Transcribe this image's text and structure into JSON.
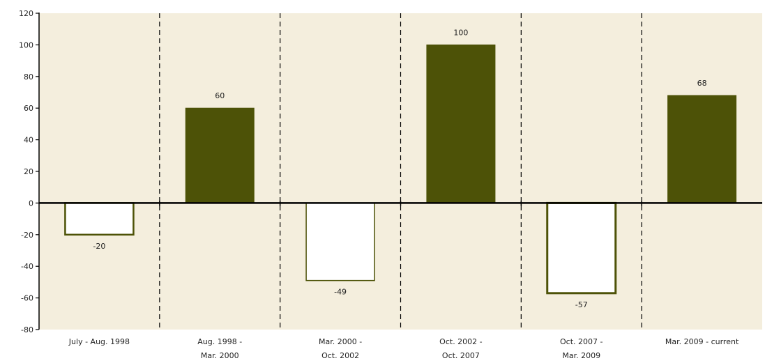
{
  "chart_data": {
    "type": "bar",
    "categories": [
      [
        "July - Aug. 1998"
      ],
      [
        "Aug. 1998 -",
        "Mar. 2000"
      ],
      [
        "Mar. 2000 -",
        "Oct. 2002"
      ],
      [
        "Oct. 2002 -",
        "Oct. 2007"
      ],
      [
        "Oct. 2007 -",
        "Mar. 2009"
      ],
      [
        "Mar. 2009 - current"
      ]
    ],
    "values": [
      -20,
      60,
      -49,
      100,
      -57,
      68
    ],
    "data_labels": [
      "-20",
      "60",
      "-49",
      "100",
      "-57",
      "68"
    ],
    "ylim": [
      -80,
      120
    ],
    "yticks": [
      -80,
      -60,
      -40,
      -20,
      0,
      20,
      40,
      60,
      80,
      100,
      120
    ],
    "title": "",
    "xlabel": "",
    "ylabel": "",
    "grid": false,
    "legend": "none",
    "category_separators": "dashed",
    "colors": {
      "positive_fill": "#4d5207",
      "negative_fill": "#ffffff",
      "bar_outline": "#4d5207",
      "plot_background": "#f4eedd",
      "axis": "#000000"
    }
  }
}
